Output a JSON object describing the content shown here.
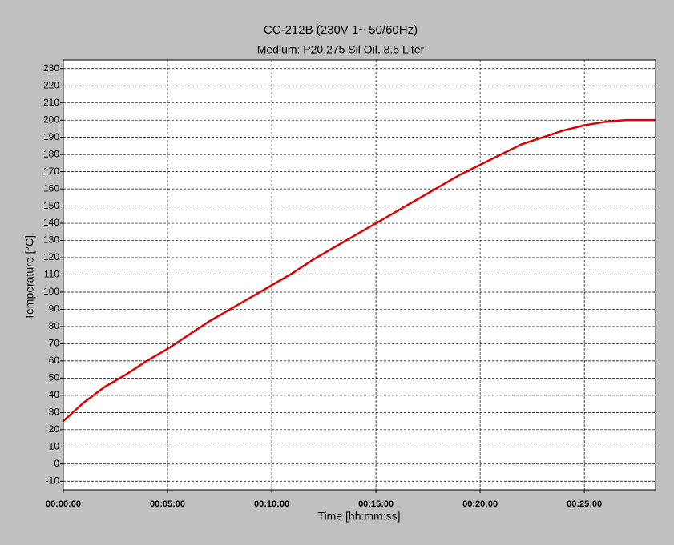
{
  "chart_data": {
    "type": "line",
    "title": "CC-212B (230V 1~ 50/60Hz)",
    "subtitle": "Medium: P20.275 Sil Oil, 8.5 Liter",
    "x_label": "Time [hh:mm:ss]",
    "y_label": "Temperature [°C]",
    "x": [
      0,
      60,
      120,
      180,
      240,
      300,
      360,
      420,
      480,
      540,
      600,
      660,
      720,
      780,
      840,
      900,
      960,
      1020,
      1080,
      1140,
      1200,
      1260,
      1320,
      1380,
      1440,
      1500,
      1560,
      1620,
      1680,
      1705
    ],
    "series": [
      {
        "color": "#e00000",
        "values": [
          25,
          36,
          45,
          52,
          60,
          67,
          75,
          83,
          90,
          97,
          104,
          111,
          119,
          126,
          133,
          140,
          147,
          154,
          161,
          168,
          174,
          180,
          186,
          190,
          194,
          197,
          199,
          200,
          200,
          200
        ]
      }
    ],
    "xlim": [
      0,
      1705
    ],
    "xticks": [
      {
        "value": 0,
        "label": "00:00:00"
      },
      {
        "value": 300,
        "label": "00:05:00"
      },
      {
        "value": 600,
        "label": "00:10:00"
      },
      {
        "value": 900,
        "label": "00:15:00"
      },
      {
        "value": 1200,
        "label": "00:20:00"
      },
      {
        "value": 1500,
        "label": "00:25:00"
      }
    ],
    "ylim": [
      -15,
      235
    ],
    "yticks": [
      -10,
      0,
      10,
      20,
      30,
      40,
      50,
      60,
      70,
      80,
      90,
      100,
      110,
      120,
      130,
      140,
      150,
      160,
      170,
      180,
      190,
      200,
      210,
      220,
      230
    ],
    "grid": true
  }
}
